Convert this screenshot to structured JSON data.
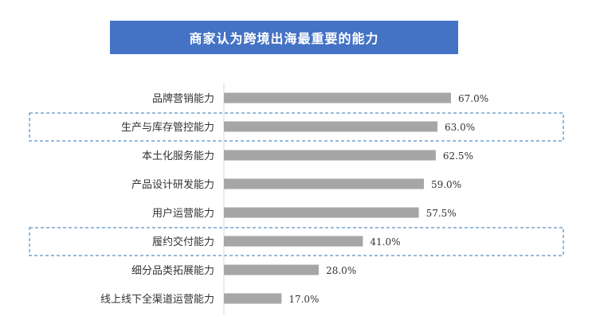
{
  "chart_data": {
    "type": "bar",
    "orientation": "horizontal",
    "title": "商家认为跨境出海最重要的能力",
    "categories": [
      "品牌营销能力",
      "生产与库存管控能力",
      "本土化服务能力",
      "产品设计研发能力",
      "用户运营能力",
      "履约交付能力",
      "细分品类拓展能力",
      "线上线下全渠道运营能力"
    ],
    "values": [
      67.0,
      63.0,
      62.5,
      59.0,
      57.5,
      41.0,
      28.0,
      17.0
    ],
    "value_labels": [
      "67.0%",
      "63.0%",
      "62.5%",
      "59.0%",
      "57.5%",
      "41.0%",
      "28.0%",
      "17.0%"
    ],
    "highlighted": [
      "生产与库存管控能力",
      "履约交付能力"
    ],
    "xlim": [
      0,
      100
    ],
    "grid": false,
    "colors": {
      "bar": "#a6a6a6",
      "title_bg": "#4472c4",
      "highlight_border": "#2e75b6"
    }
  }
}
